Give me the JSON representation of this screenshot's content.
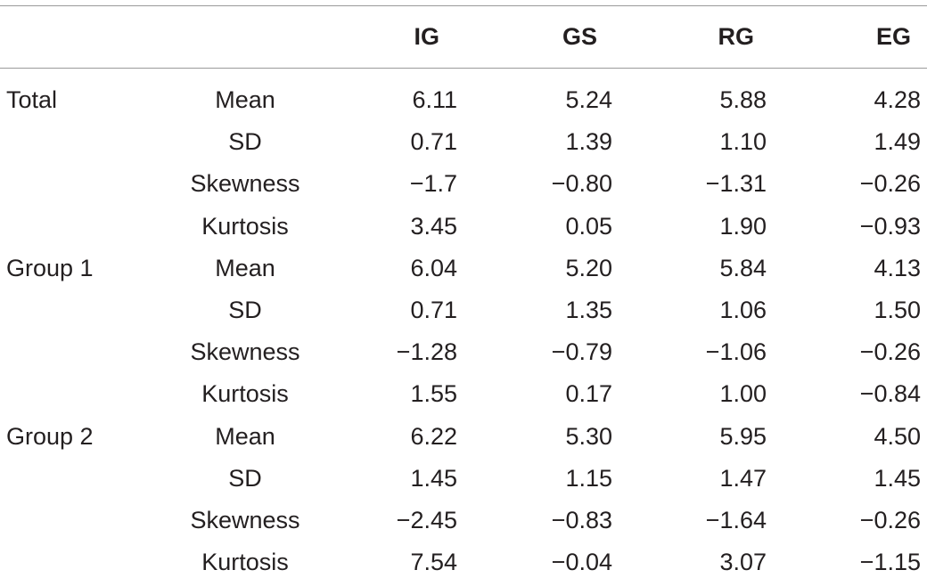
{
  "table": {
    "headers": [
      "IG",
      "GS",
      "RG",
      "EG"
    ],
    "rows": [
      {
        "group": "Total",
        "stat": "Mean",
        "values": [
          "6.11",
          "5.24",
          "5.88",
          "4.28"
        ]
      },
      {
        "group": "",
        "stat": "SD",
        "values": [
          "0.71",
          "1.39",
          "1.10",
          "1.49"
        ]
      },
      {
        "group": "",
        "stat": "Skewness",
        "values": [
          "−1.7",
          "−0.80",
          "−1.31",
          "−0.26"
        ]
      },
      {
        "group": "",
        "stat": "Kurtosis",
        "values": [
          "3.45",
          "0.05",
          "1.90",
          "−0.93"
        ]
      },
      {
        "group": "Group 1",
        "stat": "Mean",
        "values": [
          "6.04",
          "5.20",
          "5.84",
          "4.13"
        ]
      },
      {
        "group": "",
        "stat": "SD",
        "values": [
          "0.71",
          "1.35",
          "1.06",
          "1.50"
        ]
      },
      {
        "group": "",
        "stat": "Skewness",
        "values": [
          "−1.28",
          "−0.79",
          "−1.06",
          "−0.26"
        ]
      },
      {
        "group": "",
        "stat": "Kurtosis",
        "values": [
          "1.55",
          "0.17",
          "1.00",
          "−0.84"
        ]
      },
      {
        "group": "Group 2",
        "stat": "Mean",
        "values": [
          "6.22",
          "5.30",
          "5.95",
          "4.50"
        ]
      },
      {
        "group": "",
        "stat": "SD",
        "values": [
          "1.45",
          "1.15",
          "1.47",
          "1.45"
        ]
      },
      {
        "group": "",
        "stat": "Skewness",
        "values": [
          "−2.45",
          "−0.83",
          "−1.64",
          "−0.26"
        ]
      },
      {
        "group": "",
        "stat": "Kurtosis",
        "values": [
          "7.54",
          "−0.04",
          "3.07",
          "−1.15"
        ]
      }
    ]
  },
  "colors": {
    "text": "#231f20",
    "rule": "#9a9a9a"
  }
}
